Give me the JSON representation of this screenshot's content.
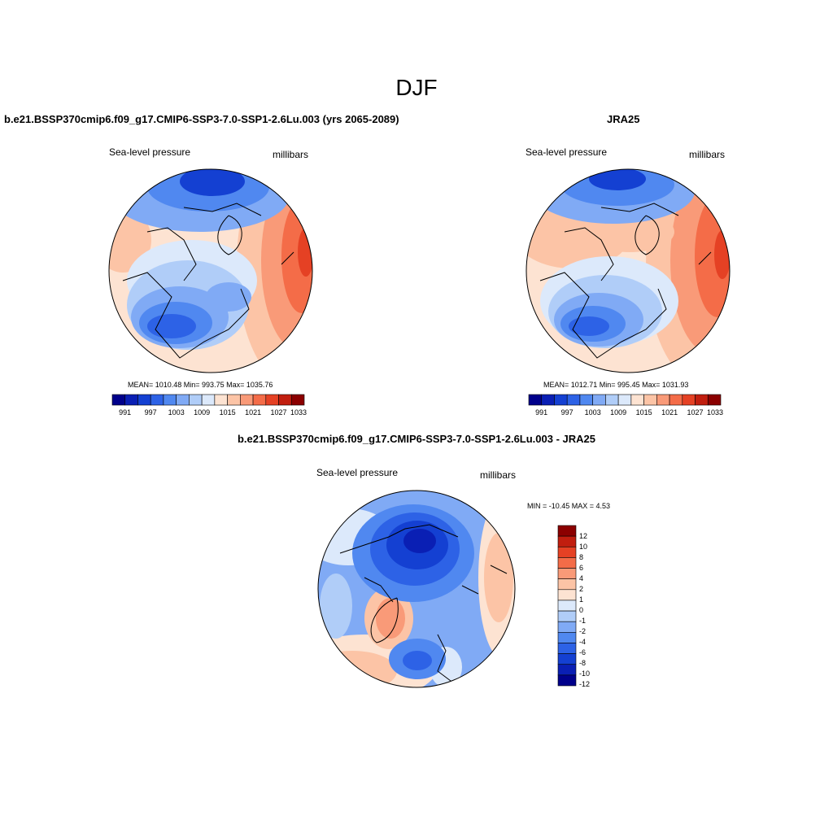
{
  "page": {
    "title": "DJF",
    "difference_title": "b.e21.BSSP370cmip6.f09_g17.CMIP6-SSP3-7.0-SSP1-2.6Lu.003 - JRA25"
  },
  "panels": [
    {
      "title": "b.e21.BSSP370cmip6.f09_g17.CMIP6-SSP3-7.0-SSP1-2.6Lu.003 (yrs 2065-2089)",
      "field": "Sea-level pressure",
      "units": "millibars",
      "stats": "MEAN= 1010.48   Min= 993.75   Max= 1035.76",
      "colorbar_labels": [
        "991",
        "997",
        "1003",
        "1009",
        "1015",
        "1021",
        "1027",
        "1033"
      ]
    },
    {
      "title": "JRA25",
      "field": "Sea-level pressure",
      "units": "millibars",
      "stats": "MEAN= 1012.71   Min= 995.45   Max= 1031.93",
      "colorbar_labels": [
        "991",
        "997",
        "1003",
        "1009",
        "1015",
        "1021",
        "1027",
        "1033"
      ]
    },
    {
      "field": "Sea-level pressure",
      "units": "millibars",
      "stats": "MIN = -10.45 MAX =   4.53",
      "colorbar_labels": [
        "12",
        "10",
        "8",
        "6",
        "4",
        "2",
        "1",
        "0",
        "-1",
        "-2",
        "-4",
        "-6",
        "-8",
        "-10",
        "-12"
      ]
    }
  ],
  "colormaps": {
    "absolute": [
      "#00008b",
      "#0a1fb4",
      "#1440d2",
      "#2d62e6",
      "#5088f0",
      "#80aaf5",
      "#b0cdf8",
      "#dce9fb",
      "#fde3d2",
      "#fcc4a6",
      "#f99a78",
      "#f46c48",
      "#e54124",
      "#c11e0f",
      "#8b0000"
    ],
    "difference": [
      "#8b0000",
      "#c11e0f",
      "#e54124",
      "#f46c48",
      "#f99a78",
      "#fcc4a6",
      "#fde3d2",
      "#dce9fb",
      "#b0cdf8",
      "#80aaf5",
      "#5088f0",
      "#2d62e6",
      "#1440d2",
      "#0a1fb4",
      "#00008b"
    ]
  }
}
